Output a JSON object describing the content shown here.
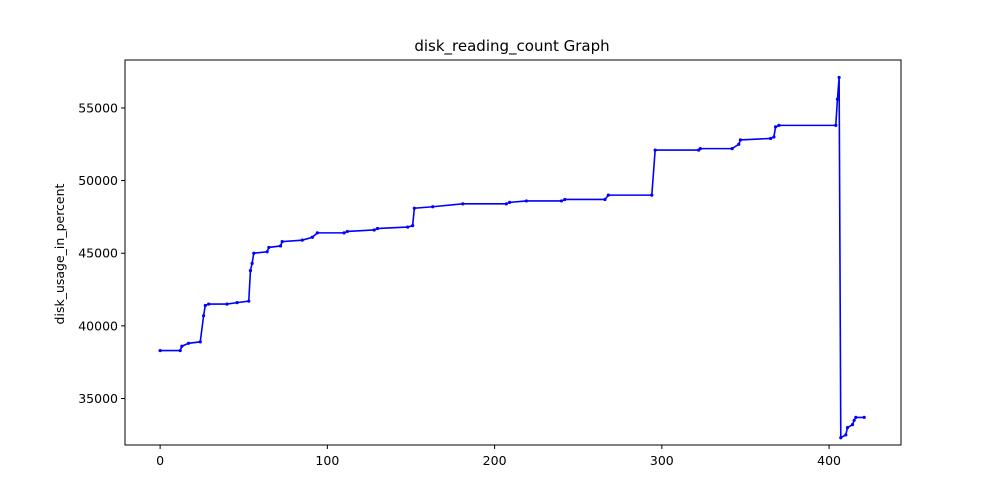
{
  "chart_data": {
    "type": "line",
    "title": "disk_reading_count Graph",
    "xlabel": "",
    "ylabel": "disk_usage_in_percent",
    "xlim": [
      -21,
      443
    ],
    "ylim": [
      31800,
      58300
    ],
    "xticks": [
      0,
      100,
      200,
      300,
      400
    ],
    "yticks": [
      35000,
      40000,
      45000,
      50000,
      55000
    ],
    "grid": false,
    "legend": "none",
    "series": [
      {
        "color": "#0000ff",
        "points": [
          [
            0,
            38300
          ],
          [
            12,
            38300
          ],
          [
            13,
            38600
          ],
          [
            17,
            38800
          ],
          [
            24,
            38900
          ],
          [
            26,
            40700
          ],
          [
            27,
            41400
          ],
          [
            29,
            41500
          ],
          [
            40,
            41500
          ],
          [
            46,
            41600
          ],
          [
            53,
            41700
          ],
          [
            54,
            43800
          ],
          [
            55,
            44300
          ],
          [
            56,
            45000
          ],
          [
            64,
            45100
          ],
          [
            65,
            45400
          ],
          [
            72,
            45500
          ],
          [
            73,
            45800
          ],
          [
            85,
            45900
          ],
          [
            91,
            46100
          ],
          [
            94,
            46400
          ],
          [
            110,
            46400
          ],
          [
            112,
            46500
          ],
          [
            128,
            46600
          ],
          [
            130,
            46700
          ],
          [
            148,
            46800
          ],
          [
            151,
            46900
          ],
          [
            152,
            48100
          ],
          [
            163,
            48200
          ],
          [
            181,
            48400
          ],
          [
            207,
            48400
          ],
          [
            209,
            48500
          ],
          [
            219,
            48600
          ],
          [
            240,
            48600
          ],
          [
            242,
            48700
          ],
          [
            266,
            48700
          ],
          [
            268,
            49000
          ],
          [
            294,
            49000
          ],
          [
            296,
            52100
          ],
          [
            322,
            52100
          ],
          [
            323,
            52200
          ],
          [
            342,
            52200
          ],
          [
            346,
            52500
          ],
          [
            347,
            52800
          ],
          [
            365,
            52900
          ],
          [
            367,
            53000
          ],
          [
            368,
            53700
          ],
          [
            370,
            53800
          ],
          [
            404,
            53800
          ],
          [
            405,
            55600
          ],
          [
            406,
            57100
          ],
          [
            407,
            32300
          ],
          [
            410,
            32500
          ],
          [
            411,
            33000
          ],
          [
            414,
            33200
          ],
          [
            415,
            33500
          ],
          [
            416,
            33700
          ],
          [
            421,
            33700
          ]
        ]
      }
    ]
  }
}
